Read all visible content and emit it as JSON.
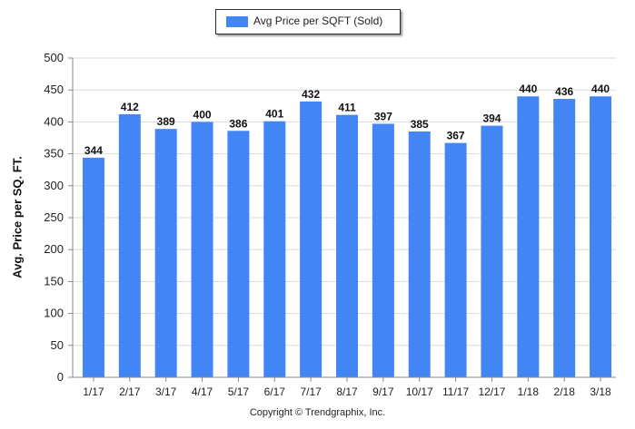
{
  "chart_data": {
    "type": "bar",
    "categories": [
      "1/17",
      "2/17",
      "3/17",
      "4/17",
      "5/17",
      "6/17",
      "7/17",
      "8/17",
      "9/17",
      "10/17",
      "11/17",
      "12/17",
      "1/18",
      "2/18",
      "3/18"
    ],
    "series": [
      {
        "name": "Avg Price per SQFT (Sold)",
        "values": [
          344,
          412,
          389,
          400,
          386,
          401,
          432,
          411,
          397,
          385,
          367,
          394,
          440,
          436,
          440
        ],
        "color": "#4285f4"
      }
    ],
    "ylabel": "Avg. Price per SQ. FT.",
    "xlabel": "",
    "ylim": [
      0,
      500
    ],
    "yticks": [
      0,
      50,
      100,
      150,
      200,
      250,
      300,
      350,
      400,
      450,
      500
    ],
    "grid": true,
    "legend": "top-center",
    "data_labels": true
  },
  "footer": {
    "copyright": "Copyright © Trendgraphix, Inc."
  }
}
